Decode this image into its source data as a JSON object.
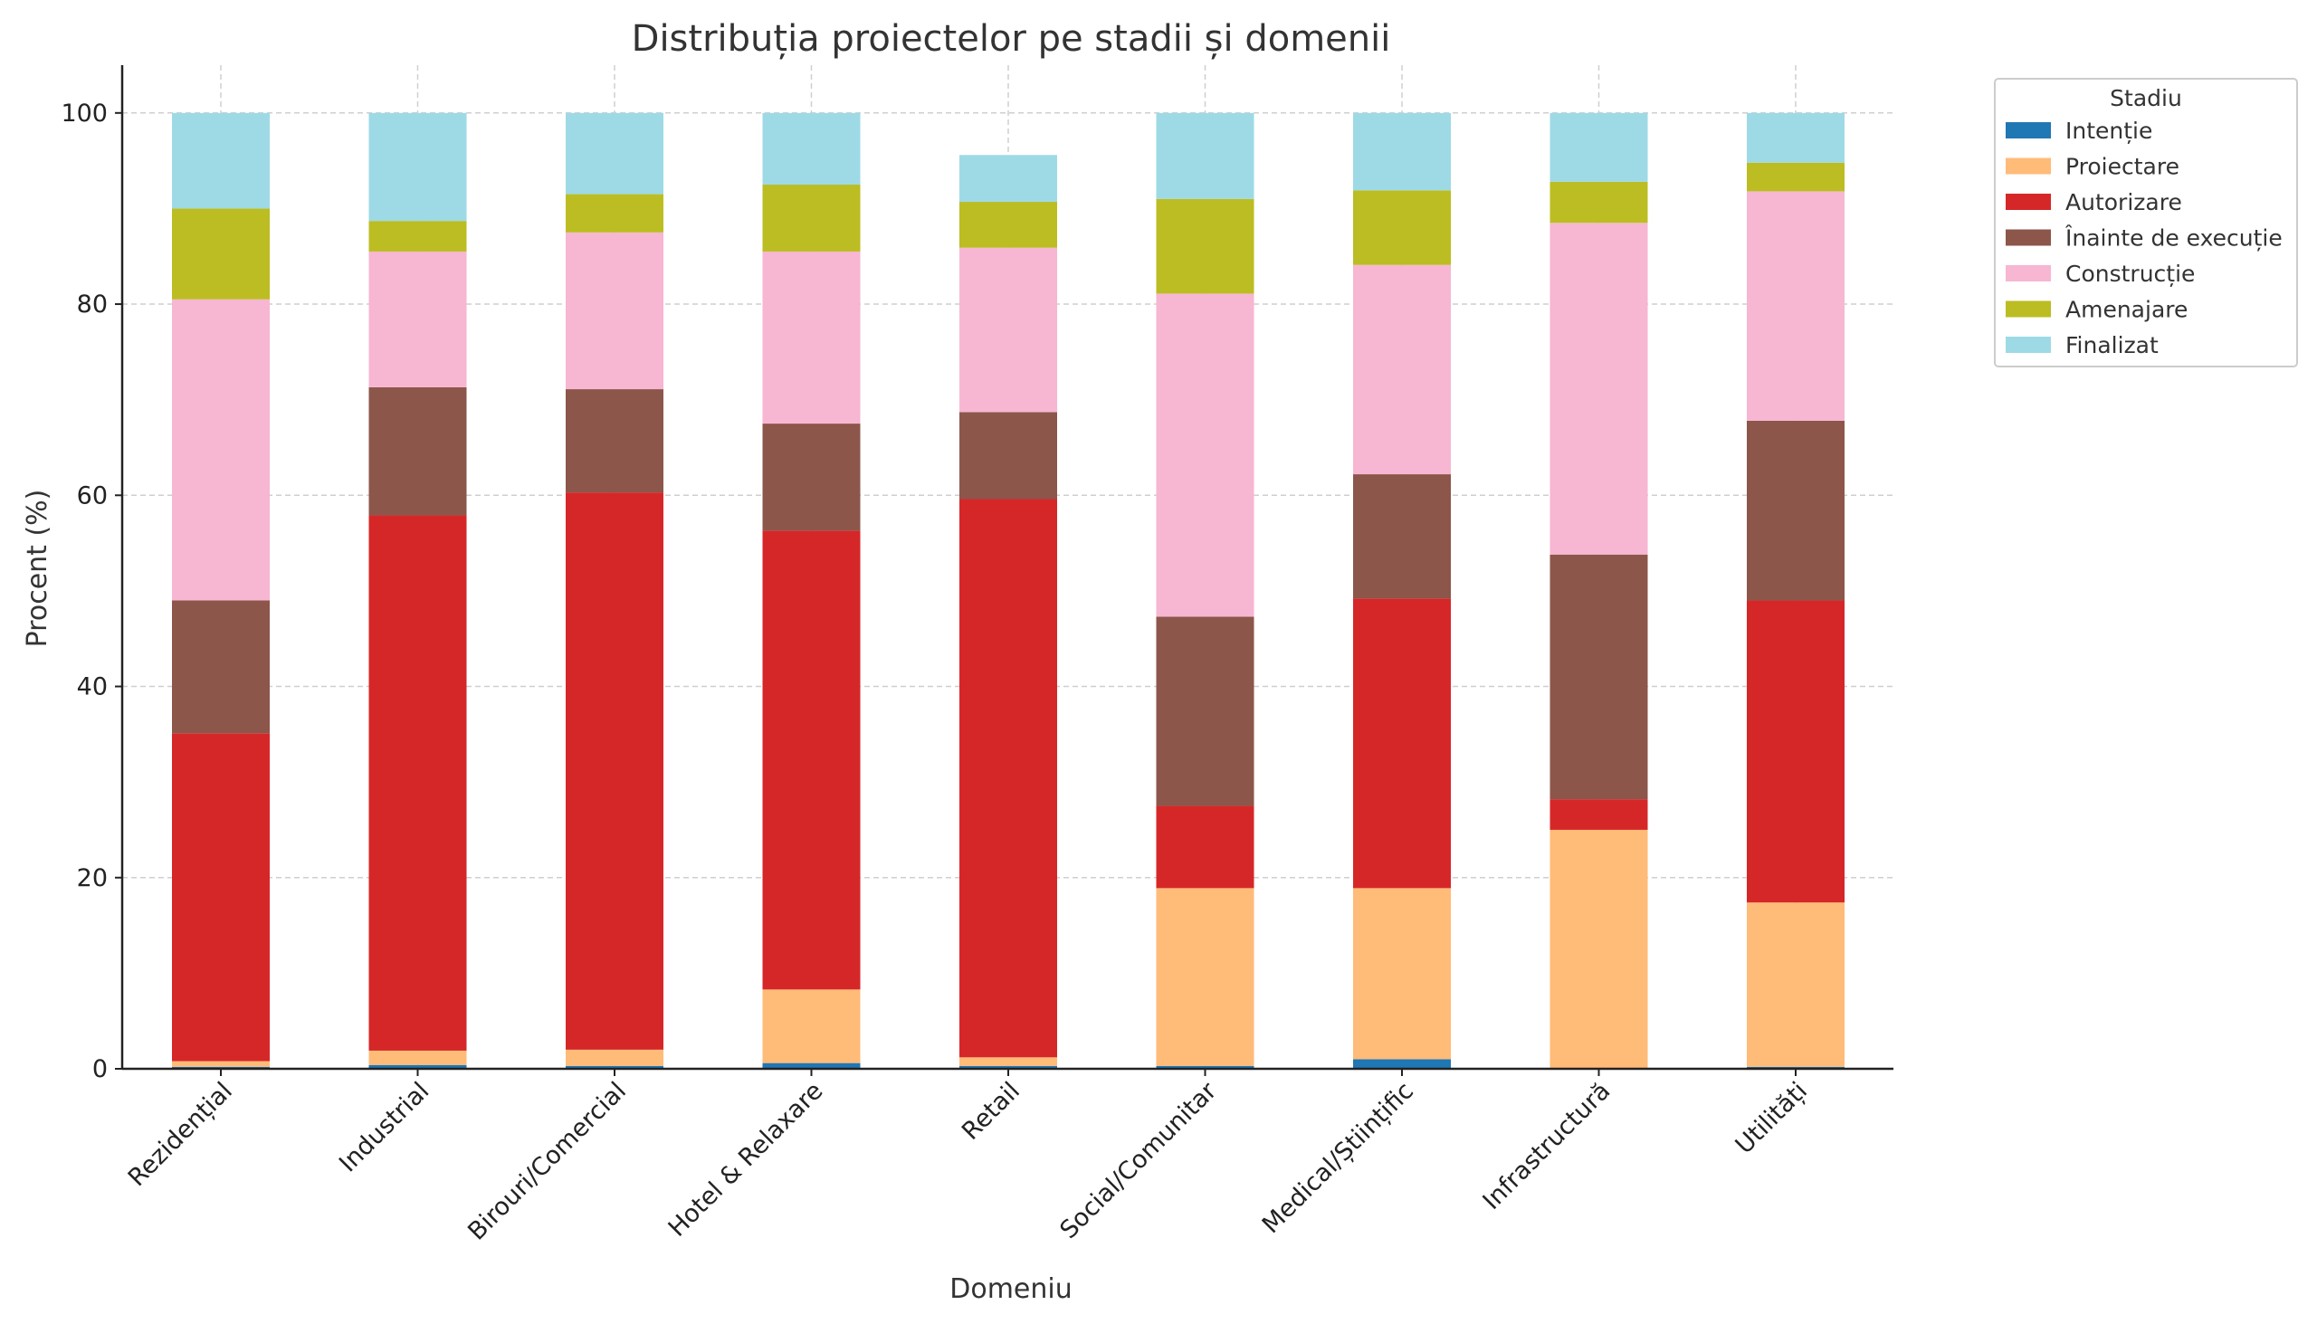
{
  "chart_data": {
    "type": "bar",
    "stacked": true,
    "title": "Distribuția proiectelor pe stadii și domenii",
    "xlabel": "Domeniu",
    "ylabel": "Procent (%)",
    "ylim": [
      0,
      105
    ],
    "yticks": [
      0,
      20,
      40,
      60,
      80,
      100
    ],
    "grid": true,
    "legend": {
      "title": "Stadiu",
      "placement": "outside-top-right"
    },
    "categories": [
      "Rezidențial",
      "Industrial",
      "Birouri/Comercial",
      "Hotel & Relaxare",
      "Retail",
      "Social/Comunitar",
      "Medical/Științific",
      "Infrastructură",
      "Utilități"
    ],
    "series": [
      {
        "name": "Intenție",
        "color": "#1f77b4",
        "values": [
          0.2,
          0.4,
          0.3,
          0.6,
          0.3,
          0.3,
          1.0,
          0.0,
          0.2
        ]
      },
      {
        "name": "Proiectare",
        "color": "#ffbb78",
        "values": [
          0.6,
          1.5,
          1.7,
          7.7,
          0.9,
          18.6,
          17.9,
          25.0,
          17.2
        ]
      },
      {
        "name": "Autorizare",
        "color": "#d62728",
        "values": [
          34.3,
          56.0,
          58.3,
          48.0,
          58.4,
          8.6,
          30.3,
          3.2,
          31.6
        ]
      },
      {
        "name": "Înainte de execuție",
        "color": "#8c564b",
        "values": [
          13.9,
          13.4,
          10.8,
          11.2,
          9.1,
          19.8,
          13.0,
          25.6,
          18.8
        ]
      },
      {
        "name": "Construcție",
        "color": "#f7b6d2",
        "values": [
          31.5,
          14.2,
          16.4,
          18.0,
          17.2,
          33.8,
          21.9,
          34.7,
          24.0
        ]
      },
      {
        "name": "Amenajare",
        "color": "#bcbd22",
        "values": [
          9.5,
          3.2,
          4.0,
          7.0,
          4.8,
          9.9,
          7.8,
          4.3,
          3.0
        ]
      },
      {
        "name": "Finalizat",
        "color": "#9edae5",
        "values": [
          10.0,
          11.3,
          8.5,
          7.5,
          4.9,
          9.0,
          8.1,
          7.2,
          5.2
        ]
      }
    ]
  }
}
